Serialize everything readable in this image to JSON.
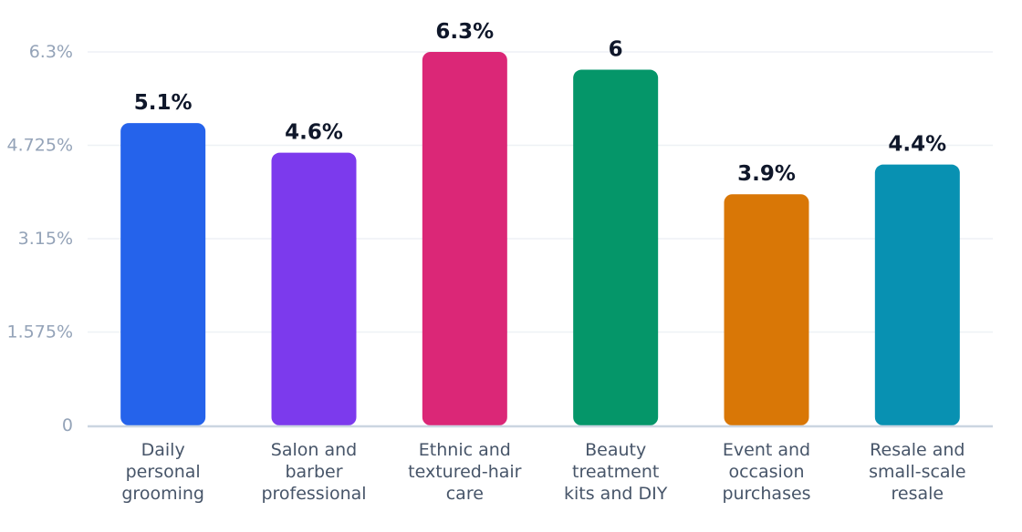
{
  "chart_data": {
    "type": "bar",
    "categories": [
      [
        "Daily",
        "personal",
        "grooming"
      ],
      [
        "Salon and",
        "barber",
        "professional"
      ],
      [
        "Ethnic and",
        "textured-hair",
        "care"
      ],
      [
        "Beauty",
        "treatment",
        "kits and DIY"
      ],
      [
        "Event and",
        "occasion",
        "purchases"
      ],
      [
        "Resale and",
        "small-scale",
        "resale"
      ]
    ],
    "values": [
      5.1,
      4.6,
      6.3,
      6.0,
      3.9,
      4.4
    ],
    "value_labels": [
      "5.1%",
      "4.6%",
      "6.3%",
      "6",
      "3.9%",
      "4.4%"
    ],
    "colors": [
      "#2563eb",
      "#7c3aed",
      "#db2777",
      "#059669",
      "#d97706",
      "#0891b2"
    ],
    "yticks": [
      0,
      1.575,
      3.15,
      4.725,
      6.3
    ],
    "ytick_labels": [
      "0",
      "1.575%",
      "3.15%",
      "4.725%",
      "6.3%"
    ],
    "ylim": [
      0,
      6.3
    ],
    "grid": true,
    "title": "",
    "xlabel": "",
    "ylabel": ""
  }
}
